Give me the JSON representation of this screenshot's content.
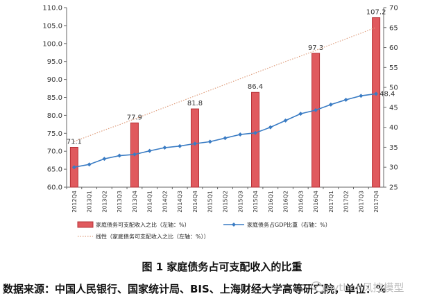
{
  "chart_data": {
    "type": "bar",
    "categories": [
      "2012Q4",
      "2013Q1",
      "2013Q2",
      "2013Q3",
      "2013Q4",
      "2014Q1",
      "2014Q2",
      "2014Q3",
      "2014Q4",
      "2015Q1",
      "2015Q2",
      "2015Q3",
      "2015Q4",
      "2016Q1",
      "2016Q2",
      "2016Q3",
      "2016Q4",
      "2017Q1",
      "2017Q2",
      "2017Q3",
      "2017Q4"
    ],
    "series": [
      {
        "name": "家庭债务可支配收入之比（左轴：%）",
        "type": "bar",
        "axis": "left",
        "color": "#e05a5e",
        "values": [
          71.1,
          null,
          null,
          null,
          77.9,
          null,
          null,
          null,
          81.8,
          null,
          null,
          null,
          86.4,
          null,
          null,
          null,
          97.3,
          null,
          null,
          null,
          107.2
        ],
        "data_labels": [
          "71.1",
          "",
          "",
          "",
          "77.9",
          "",
          "",
          "",
          "81.8",
          "",
          "",
          "",
          "86.4",
          "",
          "",
          "",
          "97.3",
          "",
          "",
          "",
          "107.2"
        ]
      },
      {
        "name": "家庭债务占GDP比重（右轴：%）",
        "type": "line",
        "axis": "right",
        "color": "#3a7cc4",
        "values": [
          30.0,
          30.7,
          32.1,
          32.9,
          33.2,
          34.1,
          34.9,
          35.3,
          35.9,
          36.4,
          37.3,
          38.2,
          38.6,
          40.0,
          41.7,
          43.4,
          44.3,
          45.7,
          46.9,
          47.9,
          48.4
        ],
        "end_label": "48.4"
      },
      {
        "name": "线性（家庭债务可支配收入之比（左轴：%））",
        "type": "trendline",
        "axis": "left",
        "color": "#e0a080",
        "values": [
          72.7,
          74.3,
          75.9,
          77.4,
          79.0,
          80.6,
          82.2,
          83.8,
          85.4,
          87.0,
          88.6,
          90.2,
          91.8,
          93.4,
          95.0,
          96.5,
          98.1,
          99.7,
          101.3,
          102.9,
          104.5
        ]
      }
    ],
    "y_left": {
      "min": 60.0,
      "max": 110.0,
      "ticks": [
        "60.0",
        "65.0",
        "70.0",
        "75.0",
        "80.0",
        "85.0",
        "90.0",
        "95.0",
        "100.0",
        "105.0",
        "110.0"
      ]
    },
    "y_right": {
      "min": 25,
      "max": 70,
      "ticks": [
        "25",
        "30",
        "35",
        "40",
        "45",
        "50",
        "55",
        "60",
        "65",
        "70"
      ]
    },
    "grid": false,
    "legend_position": "bottom",
    "title": "图 1   家庭债务占可支配收入的比重",
    "source": "数据来源：中国人民银行、国家统计局、BIS、上海财经大学高等研究院，单位：%"
  },
  "watermark": {
    "text": "python风控模型",
    "icon": "wechat-icon"
  }
}
